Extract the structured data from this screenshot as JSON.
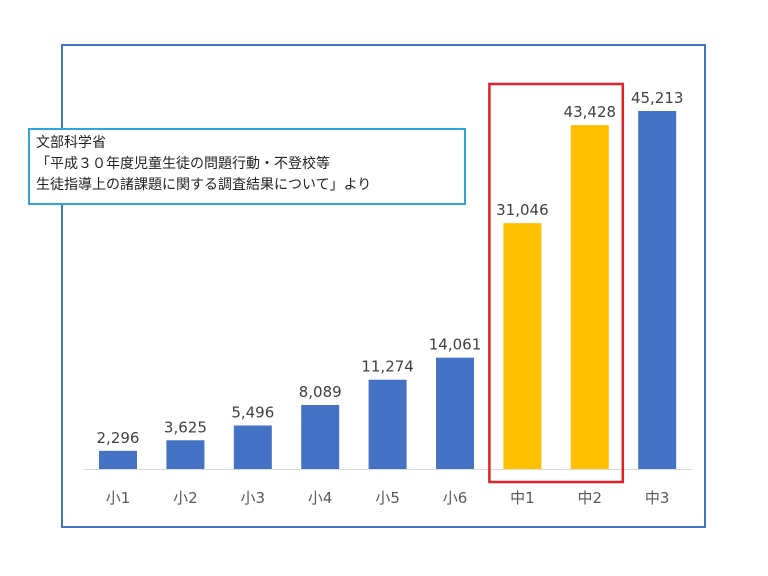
{
  "chart_data": {
    "type": "bar",
    "categories": [
      "小1",
      "小2",
      "小3",
      "小4",
      "小5",
      "小6",
      "中1",
      "中2",
      "中3"
    ],
    "values": [
      2296,
      3625,
      5496,
      8089,
      11274,
      14061,
      31046,
      43428,
      45213
    ],
    "value_labels": [
      "2,296",
      "3,625",
      "5,496",
      "8,089",
      "11,274",
      "14,061",
      "31,046",
      "43,428",
      "45,213"
    ],
    "highlighted_categories": [
      "中1",
      "中2"
    ],
    "ylim": [
      0,
      50000
    ],
    "grid": false,
    "colors": {
      "bar": "#4472C4",
      "highlight_bar": "#FFC000",
      "highlight_box": "#E0202A",
      "frame": "#4472C4",
      "source_border": "#2EA6D8"
    }
  },
  "source_note": {
    "line1": "文部科学省",
    "line2": "「平成３０年度児童生徒の問題行動・不登校等",
    "line3": "生徒指導上の諸課題に関する調査結果について」より"
  }
}
